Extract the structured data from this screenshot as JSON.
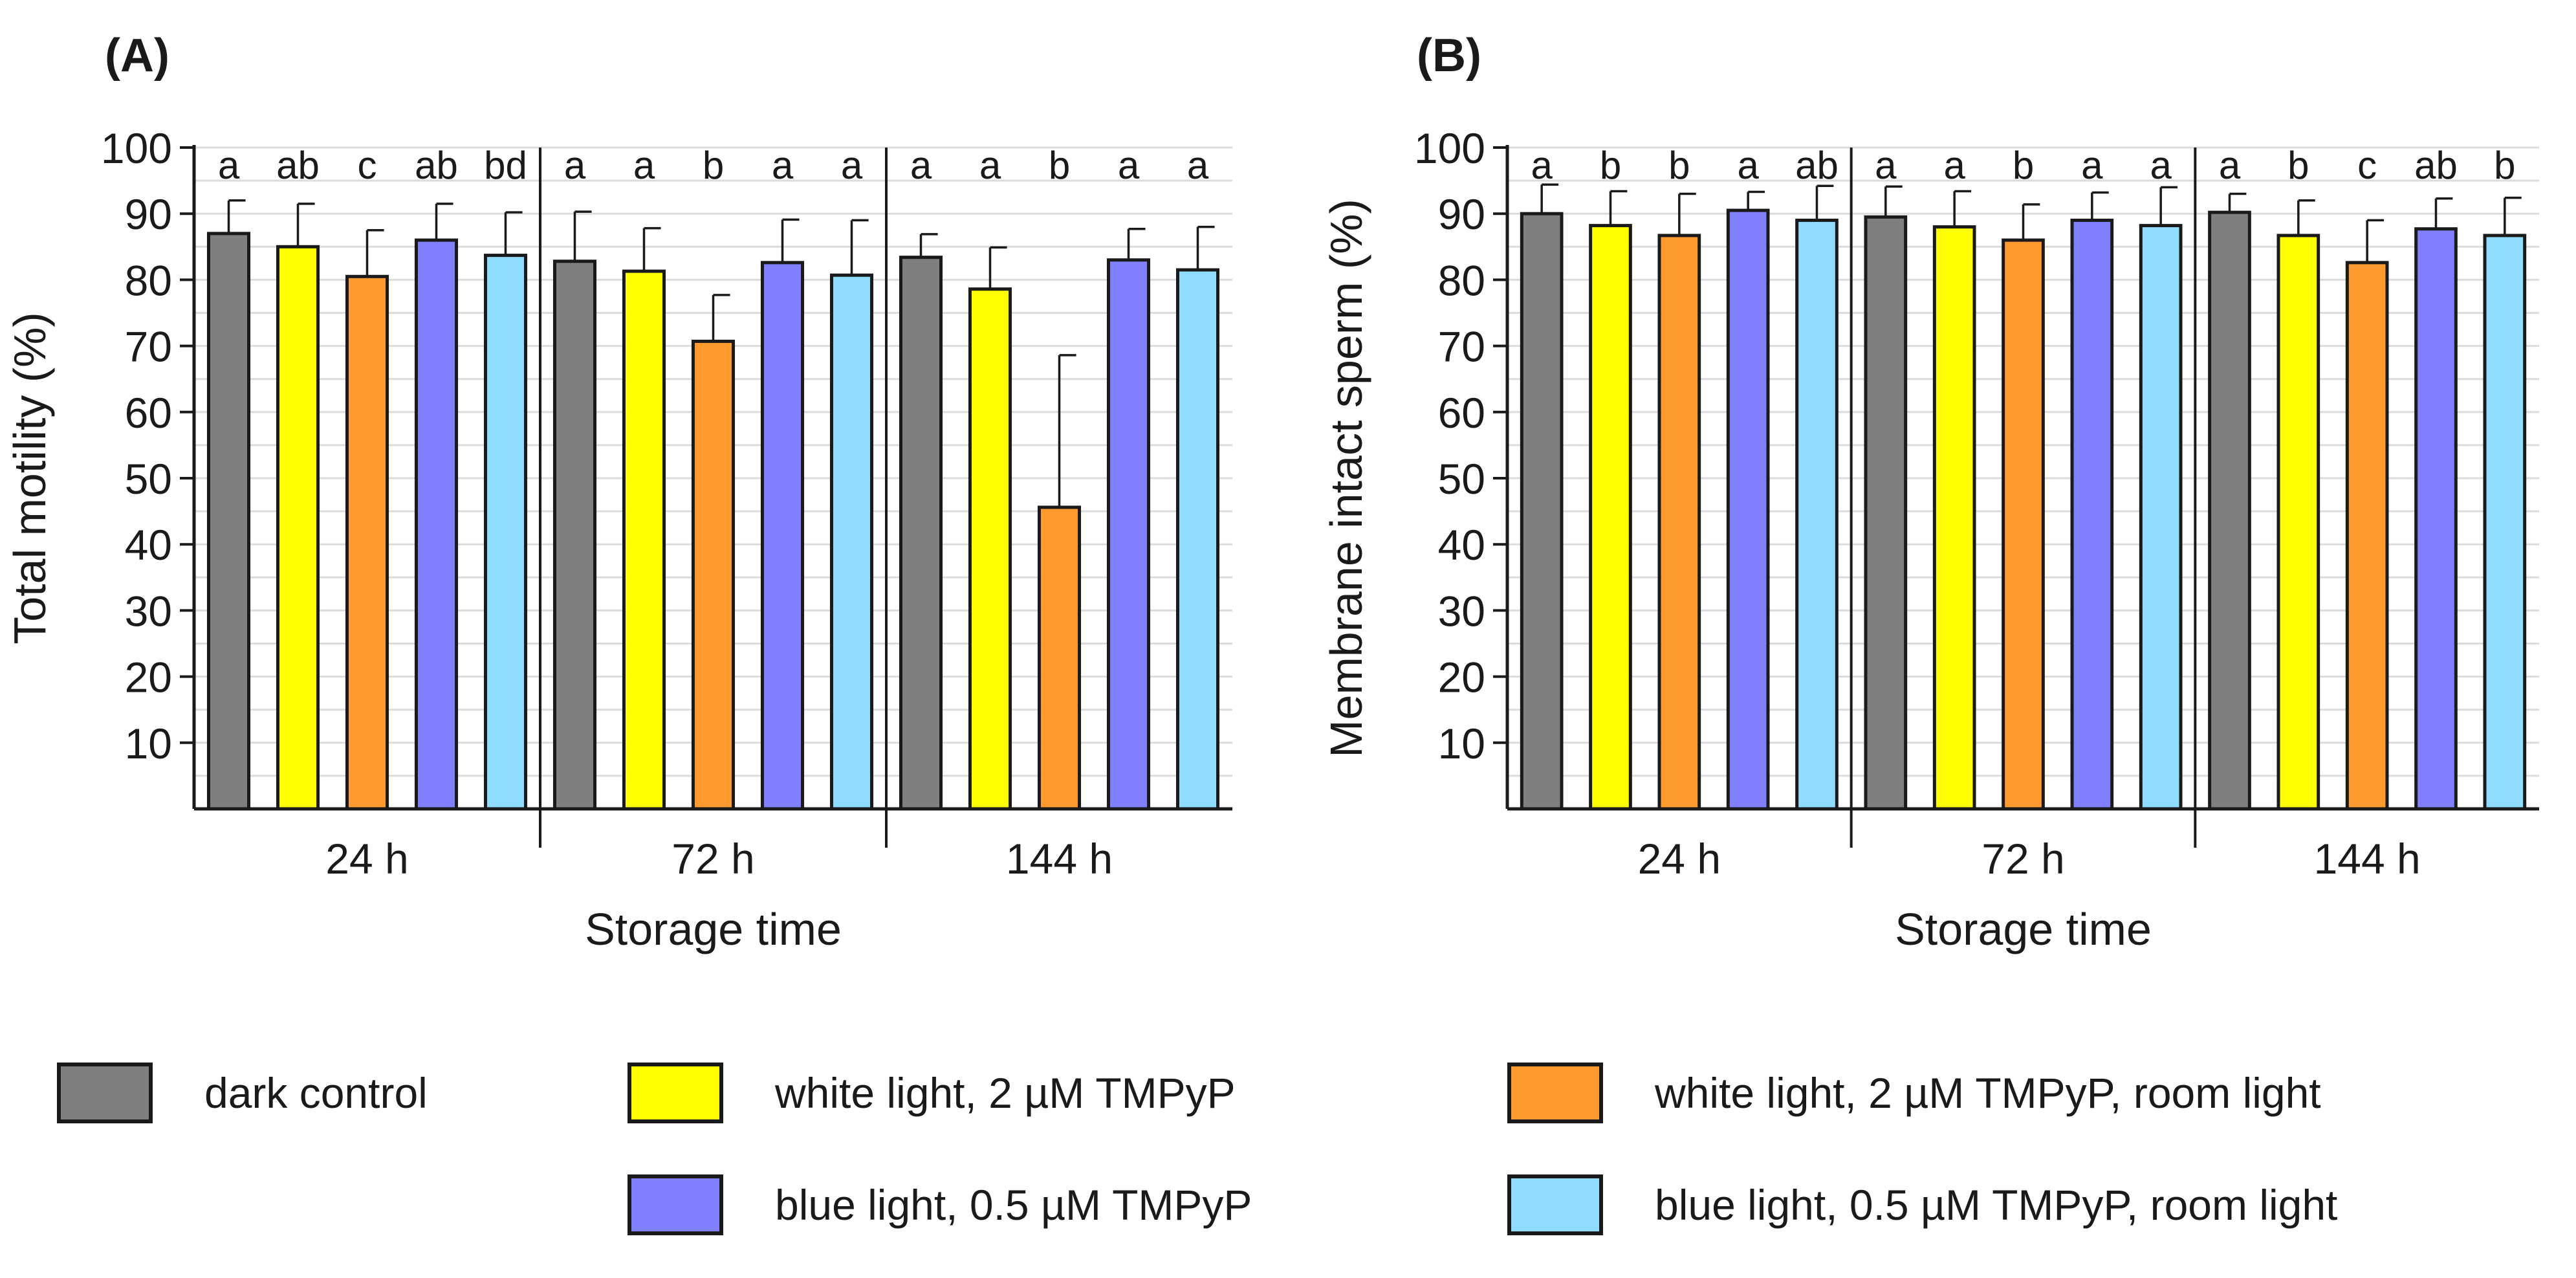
{
  "chart_data": [
    {
      "panel_label": "(A)",
      "type": "bar",
      "ylabel": "Total motility (%)",
      "xlabel": "Storage time",
      "ylim": [
        0,
        100
      ],
      "yticks": [
        10,
        20,
        30,
        40,
        50,
        60,
        70,
        80,
        90,
        100
      ],
      "grid": "horizontal minor every 5",
      "groups": [
        {
          "label": "24 h",
          "values": [
            87,
            85,
            80.5,
            86,
            83.7
          ],
          "errors": [
            5,
            6.5,
            7,
            5.5,
            6.5
          ],
          "letters": [
            "a",
            "ab",
            "c",
            "ab",
            "bd"
          ]
        },
        {
          "label": "72 h",
          "values": [
            82.8,
            81.3,
            70.7,
            82.6,
            80.7
          ],
          "errors": [
            7.5,
            6.5,
            7,
            6.5,
            8.3
          ],
          "letters": [
            "a",
            "a",
            "b",
            "a",
            "a"
          ]
        },
        {
          "label": "144 h",
          "values": [
            83.4,
            78.6,
            45.6,
            83,
            81.5
          ],
          "errors": [
            3.5,
            6.3,
            23,
            4.7,
            6.5
          ],
          "letters": [
            "a",
            "a",
            "b",
            "a",
            "a"
          ]
        }
      ]
    },
    {
      "panel_label": "(B)",
      "type": "bar",
      "ylabel": "Membrane intact sperm (%)",
      "xlabel": "Storage time",
      "ylim": [
        0,
        100
      ],
      "yticks": [
        10,
        20,
        30,
        40,
        50,
        60,
        70,
        80,
        90,
        100
      ],
      "grid": "horizontal minor every 5",
      "groups": [
        {
          "label": "24 h",
          "values": [
            90,
            88.2,
            86.7,
            90.5,
            89
          ],
          "errors": [
            4.4,
            5.2,
            6.3,
            2.8,
            5.2
          ],
          "letters": [
            "a",
            "b",
            "b",
            "a",
            "ab"
          ]
        },
        {
          "label": "72 h",
          "values": [
            89.5,
            88,
            86,
            89,
            88.2
          ],
          "errors": [
            4.6,
            5.4,
            5.4,
            4.2,
            5.8
          ],
          "letters": [
            "a",
            "a",
            "b",
            "a",
            "a"
          ]
        },
        {
          "label": "144 h",
          "values": [
            90.2,
            86.7,
            82.6,
            87.7,
            86.7
          ],
          "errors": [
            2.8,
            5.3,
            6.4,
            4.6,
            5.7
          ],
          "letters": [
            "a",
            "b",
            "c",
            "ab",
            "b"
          ]
        }
      ]
    }
  ],
  "series": [
    {
      "name": "dark control",
      "color": "#7f7f7f"
    },
    {
      "name": "white light, 2 µM TMPyP",
      "color": "#ffff00"
    },
    {
      "name": "white light, 2 µM TMPyP, room light",
      "color": "#ff9a2e"
    },
    {
      "name": "blue light, 0.5 µM TMPyP",
      "color": "#8080ff"
    },
    {
      "name": "blue light, 0.5 µM TMPyP, room light",
      "color": "#8fdcff"
    }
  ]
}
